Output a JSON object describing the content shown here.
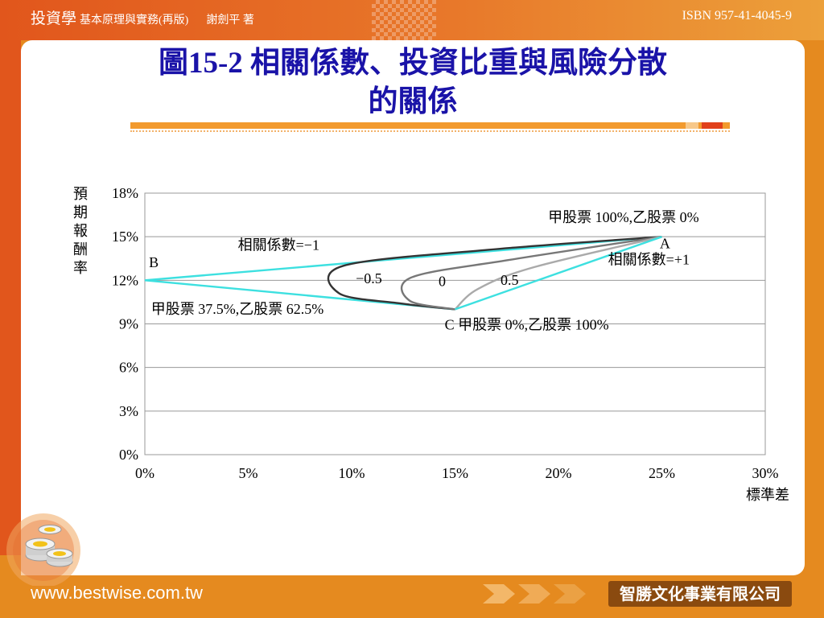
{
  "header": {
    "book_title": "投資學",
    "book_subtitle": "基本原理與實務(再版)",
    "author": "謝劍平 著",
    "isbn": "ISBN 957-41-4045-9"
  },
  "slide": {
    "title_line1": "圖15-2 相關係數、投資比重與風險分散",
    "title_line2": "的關係"
  },
  "footer": {
    "url": "www.bestwise.com.tw",
    "publisher": "智勝文化事業有限公司"
  },
  "chart_data": {
    "type": "line",
    "ylabel": "預期報酬率",
    "xlabel": "標準差",
    "xlim": [
      0,
      30
    ],
    "ylim": [
      0,
      18
    ],
    "x_ticks": [
      "0%",
      "5%",
      "10%",
      "15%",
      "20%",
      "25%",
      "30%"
    ],
    "y_ticks": [
      "0%",
      "3%",
      "6%",
      "9%",
      "12%",
      "15%",
      "18%"
    ],
    "grid": true,
    "points": [
      {
        "name": "A",
        "x": 25,
        "y": 15
      },
      {
        "name": "B",
        "x": 0,
        "y": 12
      },
      {
        "name": "C",
        "x": 15,
        "y": 10
      }
    ],
    "series": [
      {
        "name": "相關係數=−1",
        "color": "#3de0e0",
        "x": [
          25,
          0,
          15
        ],
        "y": [
          15,
          12,
          10
        ]
      },
      {
        "name": "−0.5",
        "color": "#333333",
        "x": [
          25,
          16.6,
          9.6,
          9.4,
          12.4,
          15
        ],
        "y": [
          15,
          14.1,
          13,
          11.1,
          10.4,
          10
        ]
      },
      {
        "name": "0",
        "color": "#777777",
        "x": [
          25,
          17.6,
          12.9,
          12.8,
          15
        ],
        "y": [
          15,
          13.4,
          12.2,
          10.6,
          10
        ]
      },
      {
        "name": "0.5",
        "color": "#aaaaaa",
        "x": [
          25,
          18.8,
          16.1,
          15
        ],
        "y": [
          15,
          12.9,
          11.4,
          10
        ]
      },
      {
        "name": "相關係數=+1",
        "color": "#3de0e0",
        "x": [
          25,
          15
        ],
        "y": [
          15,
          10
        ]
      }
    ],
    "annotations": [
      {
        "text": "甲股票 100%,乙股票 0%",
        "x": 19.5,
        "y": 16
      },
      {
        "text": "A",
        "x": 24.9,
        "y": 14.2
      },
      {
        "text": "相關係數=+1",
        "x": 22.4,
        "y": 13.1
      },
      {
        "text": "相關係數=−1",
        "x": 4.5,
        "y": 14.1
      },
      {
        "text": "B",
        "x": 0.2,
        "y": 12.9
      },
      {
        "text": "−0.5",
        "x": 10.2,
        "y": 11.8
      },
      {
        "text": "0",
        "x": 14.2,
        "y": 11.6
      },
      {
        "text": "0.5",
        "x": 17.2,
        "y": 11.7
      },
      {
        "text": "甲股票 37.5%,乙股票 62.5%",
        "x": 0.3,
        "y": 9.7
      },
      {
        "text": "C 甲股票 0%,乙股票 100%",
        "x": 14.5,
        "y": 8.6
      }
    ]
  }
}
